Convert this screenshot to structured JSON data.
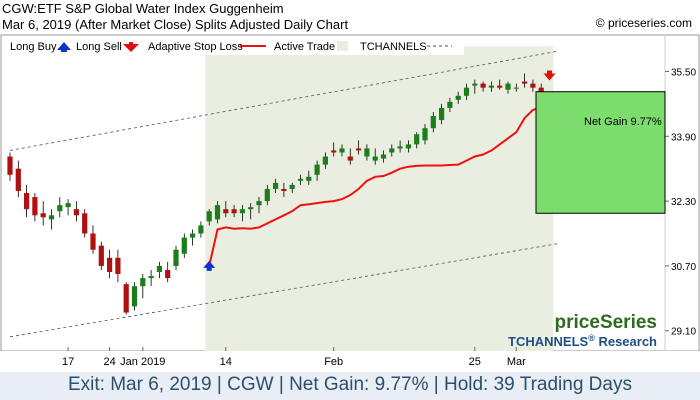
{
  "header": {
    "title": "CGW:ETF S&P Global Water Index Guggenheim",
    "subtitle": "Mar 6, 2019 (After Market Close)  Splits Adjusted Daily Chart",
    "copyright": "© priceseries.com"
  },
  "legend": {
    "long_buy": "Long Buy",
    "long_sell": "Long Sell",
    "adaptive_stop": "Adaptive Stop Loss",
    "active_trade": "Active Trade",
    "tchannels": "TCHANNELS"
  },
  "net_gain_label": "Net Gain 9.77%",
  "branding": {
    "logo": "priceSeries",
    "research_prefix": "TCHANNELS",
    "research_reg": "®",
    "research_suffix": " Research"
  },
  "footer": {
    "exit": "Exit: Mar 6, 2019",
    "symbol": "CGW",
    "net_gain": "Net Gain: 9.77%",
    "hold": "Hold: 39 Trading Days"
  },
  "colors": {
    "up_candle": "#1a7f1a",
    "down_candle": "#b01010",
    "stop_line": "#ee1111",
    "active_trade_bg": "#eaeee0",
    "gain_box": "#7ddc6e",
    "buy_arrow": "#1133cc",
    "sell_arrow": "#dd1111",
    "channel": "#445566"
  },
  "chart_data": {
    "type": "candlestick",
    "y_ticks": [
      29.1,
      30.7,
      32.3,
      33.9,
      35.5
    ],
    "ylim": [
      28.6,
      36.4
    ],
    "x_ticks": [
      {
        "label": "17",
        "index": 7
      },
      {
        "label": "24",
        "index": 12
      },
      {
        "label": "Jan 2019",
        "index": 16
      },
      {
        "label": "14",
        "index": 26
      },
      {
        "label": "Feb",
        "index": 39
      },
      {
        "label": "25",
        "index": 56
      },
      {
        "label": "Mar",
        "index": 61
      }
    ],
    "candles": [
      {
        "o": 33.4,
        "h": 33.5,
        "l": 32.8,
        "c": 32.95
      },
      {
        "o": 33.1,
        "h": 33.3,
        "l": 32.4,
        "c": 32.55
      },
      {
        "o": 32.5,
        "h": 32.7,
        "l": 31.9,
        "c": 32.1
      },
      {
        "o": 32.4,
        "h": 32.5,
        "l": 31.8,
        "c": 31.95
      },
      {
        "o": 32.0,
        "h": 32.3,
        "l": 31.7,
        "c": 31.9
      },
      {
        "o": 31.85,
        "h": 32.1,
        "l": 31.6,
        "c": 31.95
      },
      {
        "o": 32.05,
        "h": 32.4,
        "l": 31.9,
        "c": 32.2
      },
      {
        "o": 32.15,
        "h": 32.35,
        "l": 31.95,
        "c": 32.25
      },
      {
        "o": 32.1,
        "h": 32.3,
        "l": 31.8,
        "c": 31.95
      },
      {
        "o": 32.0,
        "h": 32.1,
        "l": 31.4,
        "c": 31.5
      },
      {
        "o": 31.5,
        "h": 31.7,
        "l": 31.0,
        "c": 31.1
      },
      {
        "o": 31.2,
        "h": 31.3,
        "l": 30.6,
        "c": 30.7
      },
      {
        "o": 30.9,
        "h": 31.1,
        "l": 30.4,
        "c": 30.55
      },
      {
        "o": 30.9,
        "h": 31.1,
        "l": 30.3,
        "c": 30.5
      },
      {
        "o": 30.25,
        "h": 30.3,
        "l": 29.5,
        "c": 29.55
      },
      {
        "o": 29.7,
        "h": 30.3,
        "l": 29.6,
        "c": 30.2
      },
      {
        "o": 30.2,
        "h": 30.5,
        "l": 29.9,
        "c": 30.4
      },
      {
        "o": 30.4,
        "h": 30.6,
        "l": 30.2,
        "c": 30.45
      },
      {
        "o": 30.55,
        "h": 30.8,
        "l": 30.4,
        "c": 30.7
      },
      {
        "o": 30.6,
        "h": 30.8,
        "l": 30.3,
        "c": 30.4
      },
      {
        "o": 30.7,
        "h": 31.2,
        "l": 30.6,
        "c": 31.1
      },
      {
        "o": 31.0,
        "h": 31.5,
        "l": 30.9,
        "c": 31.4
      },
      {
        "o": 31.4,
        "h": 31.6,
        "l": 31.2,
        "c": 31.5
      },
      {
        "o": 31.5,
        "h": 31.8,
        "l": 31.4,
        "c": 31.7
      },
      {
        "o": 31.8,
        "h": 32.1,
        "l": 31.7,
        "c": 32.05
      },
      {
        "o": 31.85,
        "h": 32.3,
        "l": 31.75,
        "c": 32.2
      },
      {
        "o": 32.1,
        "h": 32.3,
        "l": 31.9,
        "c": 32.0
      },
      {
        "o": 32.1,
        "h": 32.2,
        "l": 31.9,
        "c": 32.0
      },
      {
        "o": 32.0,
        "h": 32.2,
        "l": 31.8,
        "c": 32.1
      },
      {
        "o": 32.1,
        "h": 32.25,
        "l": 31.85,
        "c": 32.15
      },
      {
        "o": 32.2,
        "h": 32.4,
        "l": 32.0,
        "c": 32.3
      },
      {
        "o": 32.3,
        "h": 32.7,
        "l": 32.2,
        "c": 32.6
      },
      {
        "o": 32.6,
        "h": 32.85,
        "l": 32.5,
        "c": 32.75
      },
      {
        "o": 32.6,
        "h": 32.75,
        "l": 32.4,
        "c": 32.55
      },
      {
        "o": 32.6,
        "h": 32.75,
        "l": 32.5,
        "c": 32.7
      },
      {
        "o": 32.8,
        "h": 32.95,
        "l": 32.7,
        "c": 32.85
      },
      {
        "o": 32.8,
        "h": 33.05,
        "l": 32.7,
        "c": 32.9
      },
      {
        "o": 32.95,
        "h": 33.3,
        "l": 32.8,
        "c": 33.2
      },
      {
        "o": 33.2,
        "h": 33.5,
        "l": 33.1,
        "c": 33.4
      },
      {
        "o": 33.55,
        "h": 33.75,
        "l": 33.4,
        "c": 33.5
      },
      {
        "o": 33.5,
        "h": 33.7,
        "l": 33.4,
        "c": 33.6
      },
      {
        "o": 33.4,
        "h": 33.6,
        "l": 33.2,
        "c": 33.3
      },
      {
        "o": 33.6,
        "h": 33.8,
        "l": 33.45,
        "c": 33.55
      },
      {
        "o": 33.4,
        "h": 33.7,
        "l": 33.3,
        "c": 33.6
      },
      {
        "o": 33.3,
        "h": 33.6,
        "l": 33.2,
        "c": 33.4
      },
      {
        "o": 33.35,
        "h": 33.55,
        "l": 33.25,
        "c": 33.45
      },
      {
        "o": 33.5,
        "h": 33.7,
        "l": 33.4,
        "c": 33.6
      },
      {
        "o": 33.6,
        "h": 33.8,
        "l": 33.5,
        "c": 33.65
      },
      {
        "o": 33.6,
        "h": 33.8,
        "l": 33.5,
        "c": 33.7
      },
      {
        "o": 33.7,
        "h": 34.0,
        "l": 33.6,
        "c": 33.95
      },
      {
        "o": 33.8,
        "h": 34.2,
        "l": 33.7,
        "c": 34.1
      },
      {
        "o": 34.1,
        "h": 34.5,
        "l": 34.0,
        "c": 34.4
      },
      {
        "o": 34.3,
        "h": 34.7,
        "l": 34.2,
        "c": 34.6
      },
      {
        "o": 34.6,
        "h": 34.85,
        "l": 34.5,
        "c": 34.75
      },
      {
        "o": 34.8,
        "h": 35.0,
        "l": 34.7,
        "c": 34.9
      },
      {
        "o": 34.9,
        "h": 35.2,
        "l": 34.8,
        "c": 35.1
      },
      {
        "o": 35.15,
        "h": 35.3,
        "l": 34.95,
        "c": 35.2
      },
      {
        "o": 35.2,
        "h": 35.25,
        "l": 35.0,
        "c": 35.1
      },
      {
        "o": 35.1,
        "h": 35.25,
        "l": 35.0,
        "c": 35.15
      },
      {
        "o": 35.15,
        "h": 35.3,
        "l": 35.05,
        "c": 35.1
      },
      {
        "o": 35.05,
        "h": 35.25,
        "l": 34.95,
        "c": 35.2
      },
      {
        "o": 35.1,
        "h": 35.2,
        "l": 35.0,
        "c": 35.1
      },
      {
        "o": 35.25,
        "h": 35.45,
        "l": 35.1,
        "c": 35.2
      },
      {
        "o": 35.2,
        "h": 35.3,
        "l": 35.0,
        "c": 35.1
      },
      {
        "o": 35.1,
        "h": 35.2,
        "l": 34.7,
        "c": 34.8
      }
    ],
    "stop_loss": {
      "start_index": 24,
      "values": [
        30.7,
        31.6,
        31.65,
        31.62,
        31.63,
        31.62,
        31.65,
        31.75,
        31.85,
        31.95,
        32.05,
        32.2,
        32.22,
        32.25,
        32.28,
        32.3,
        32.35,
        32.45,
        32.6,
        32.8,
        32.9,
        32.92,
        33.0,
        33.1,
        33.15,
        33.17,
        33.18,
        33.18,
        33.18,
        33.19,
        33.2,
        33.3,
        33.4,
        33.45,
        33.55,
        33.7,
        33.85,
        34.0,
        34.35,
        34.55,
        34.6,
        34.6,
        34.7,
        34.75
      ]
    },
    "channel": {
      "upper": [
        {
          "index": 0,
          "value": 33.55
        },
        {
          "index": 66,
          "value": 36.0
        }
      ],
      "lower": [
        {
          "index": 0,
          "value": 28.95
        },
        {
          "index": 66,
          "value": 31.25
        }
      ]
    },
    "active_trade": {
      "start_index": 24,
      "end_index": 65
    },
    "buy_signal": {
      "index": 24,
      "value": 30.7
    },
    "sell_signal": {
      "index": 65,
      "value": 35.4
    },
    "gain_box": {
      "top": 35.0,
      "bottom": 32.0
    }
  }
}
